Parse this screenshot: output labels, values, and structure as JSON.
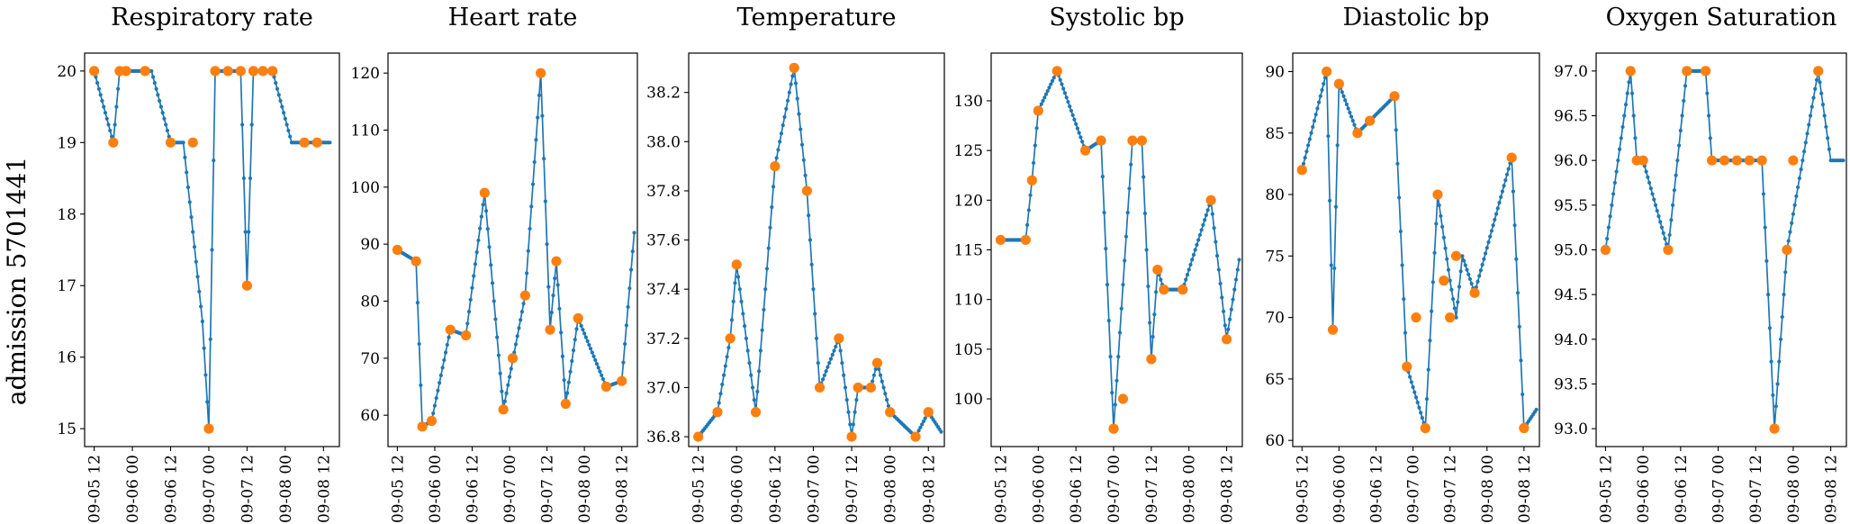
{
  "row_label": "admission 5701441",
  "colors": {
    "line": "#1f77b4",
    "marker": "#ff7f0e"
  },
  "chart_data": [
    {
      "type": "line",
      "title": "Respiratory rate",
      "x_range": [
        "09-05 09:00",
        "09-08 17:00"
      ],
      "x_ticks": [
        "09-05 12",
        "09-06 00",
        "09-06 12",
        "09-07 00",
        "09-07 12",
        "09-08 00",
        "09-08 12"
      ],
      "ylim": [
        14.75,
        20.25
      ],
      "y_ticks": [
        15,
        16,
        17,
        18,
        19,
        20
      ],
      "line_x": [
        "09-05 12:00",
        "09-05 18:00",
        "09-05 20:00",
        "09-05 22:00",
        "09-06 02:00",
        "09-06 06:00",
        "09-06 12:00",
        "09-06 16:00",
        "09-06 22:00",
        "09-07 00:00",
        "09-07 02:00",
        "09-07 06:00",
        "09-07 10:00",
        "09-07 12:00",
        "09-07 14:00",
        "09-07 18:00",
        "09-07 20:00",
        "09-08 02:00",
        "09-08 06:00",
        "09-08 10:00",
        "09-08 14:00"
      ],
      "line_y": [
        20,
        19,
        20,
        20,
        20,
        20,
        19,
        19,
        16.5,
        15,
        20,
        20,
        20,
        17,
        20,
        20,
        20,
        19,
        19,
        19,
        19
      ],
      "markers_x": [
        "09-05 12:00",
        "09-05 18:00",
        "09-05 20:00",
        "09-05 22:00",
        "09-06 04:00",
        "09-06 12:00",
        "09-06 19:00",
        "09-07 00:00",
        "09-07 02:00",
        "09-07 06:00",
        "09-07 10:00",
        "09-07 12:00",
        "09-07 14:00",
        "09-07 17:00",
        "09-07 20:00",
        "09-08 06:00",
        "09-08 10:00"
      ],
      "markers_y": [
        20,
        19,
        20,
        20,
        20,
        19,
        19,
        15,
        20,
        20,
        20,
        17,
        20,
        20,
        20,
        19,
        19
      ]
    },
    {
      "type": "line",
      "title": "Heart rate",
      "x_range": [
        "09-05 09:00",
        "09-08 17:00"
      ],
      "x_ticks": [
        "09-05 12",
        "09-06 00",
        "09-06 12",
        "09-07 00",
        "09-07 12",
        "09-08 00",
        "09-08 12"
      ],
      "ylim": [
        54.5,
        123.5
      ],
      "y_ticks": [
        60,
        70,
        80,
        90,
        100,
        110,
        120
      ],
      "line_x": [
        "09-05 12:00",
        "09-05 18:00",
        "09-05 20:00",
        "09-05 23:00",
        "09-06 05:00",
        "09-06 10:00",
        "09-06 16:00",
        "09-06 22:00",
        "09-07 05:00",
        "09-07 10:00",
        "09-07 13:00",
        "09-07 15:00",
        "09-07 18:00",
        "09-07 22:00",
        "09-08 07:00",
        "09-08 12:00",
        "09-08 16:00"
      ],
      "line_y": [
        89,
        87,
        58,
        59,
        75,
        74,
        99,
        61,
        81,
        120,
        75,
        87,
        62,
        77,
        65,
        66,
        92
      ],
      "markers_x": [
        "09-05 12:00",
        "09-05 18:00",
        "09-05 20:00",
        "09-05 23:00",
        "09-06 05:00",
        "09-06 10:00",
        "09-06 16:00",
        "09-06 22:00",
        "09-07 01:00",
        "09-07 05:00",
        "09-07 10:00",
        "09-07 13:00",
        "09-07 15:00",
        "09-07 18:00",
        "09-07 22:00",
        "09-08 07:00",
        "09-08 12:00"
      ],
      "markers_y": [
        89,
        87,
        58,
        59,
        75,
        74,
        99,
        61,
        70,
        81,
        120,
        75,
        87,
        62,
        77,
        65,
        66
      ]
    },
    {
      "type": "line",
      "title": "Temperature",
      "x_range": [
        "09-05 09:00",
        "09-08 17:00"
      ],
      "x_ticks": [
        "09-05 12",
        "09-06 00",
        "09-06 12",
        "09-07 00",
        "09-07 12",
        "09-08 00",
        "09-08 12"
      ],
      "ylim": [
        36.76,
        38.36
      ],
      "y_ticks": [
        "36.8",
        "37.0",
        "37.2",
        "37.4",
        "37.6",
        "37.8",
        "38.0",
        "38.2"
      ],
      "line_x": [
        "09-05 12:00",
        "09-05 18:00",
        "09-05 22:00",
        "09-06 00:00",
        "09-06 06:00",
        "09-06 12:00",
        "09-06 18:00",
        "09-06 22:00",
        "09-07 02:00",
        "09-07 08:00",
        "09-07 12:00",
        "09-07 14:00",
        "09-07 18:00",
        "09-07 20:00",
        "09-08 00:00",
        "09-08 08:00",
        "09-08 12:00",
        "09-08 16:00"
      ],
      "line_y": [
        36.8,
        36.9,
        37.2,
        37.5,
        36.9,
        37.9,
        38.3,
        37.8,
        37.0,
        37.2,
        36.8,
        37.0,
        37.0,
        37.1,
        36.9,
        36.8,
        36.9,
        36.82
      ],
      "markers_x": [
        "09-05 12:00",
        "09-05 18:00",
        "09-05 22:00",
        "09-06 00:00",
        "09-06 06:00",
        "09-06 12:00",
        "09-06 18:00",
        "09-06 22:00",
        "09-07 02:00",
        "09-07 08:00",
        "09-07 12:00",
        "09-07 14:00",
        "09-07 18:00",
        "09-07 20:00",
        "09-08 00:00",
        "09-08 08:00",
        "09-08 12:00"
      ],
      "markers_y": [
        36.8,
        36.9,
        37.2,
        37.5,
        36.9,
        37.9,
        38.3,
        37.8,
        37.0,
        37.2,
        36.8,
        37.0,
        37.0,
        37.1,
        36.9,
        36.8,
        36.9
      ]
    },
    {
      "type": "line",
      "title": "Systolic bp",
      "x_range": [
        "09-05 09:00",
        "09-08 17:00"
      ],
      "x_ticks": [
        "09-05 12",
        "09-06 00",
        "09-06 12",
        "09-07 00",
        "09-07 12",
        "09-08 00",
        "09-08 12"
      ],
      "ylim": [
        95.2,
        134.8
      ],
      "y_ticks": [
        100,
        105,
        110,
        115,
        120,
        125,
        130
      ],
      "line_x": [
        "09-05 12:00",
        "09-05 20:00",
        "09-05 22:00",
        "09-06 00:00",
        "09-06 06:00",
        "09-06 15:00",
        "09-06 20:00",
        "09-07 00:00",
        "09-07 06:00",
        "09-07 09:00",
        "09-07 12:00",
        "09-07 14:00",
        "09-07 16:00",
        "09-07 18:00",
        "09-07 22:00",
        "09-08 07:00",
        "09-08 12:00",
        "09-08 16:00"
      ],
      "line_y": [
        116,
        116,
        122,
        129,
        133,
        125,
        126,
        97,
        126,
        126,
        104,
        113,
        111,
        111,
        111,
        120,
        106,
        114
      ],
      "markers_x": [
        "09-05 12:00",
        "09-05 20:00",
        "09-05 22:00",
        "09-06 00:00",
        "09-06 06:00",
        "09-06 15:00",
        "09-06 20:00",
        "09-07 00:00",
        "09-07 03:00",
        "09-07 06:00",
        "09-07 09:00",
        "09-07 12:00",
        "09-07 14:00",
        "09-07 16:00",
        "09-07 22:00",
        "09-08 07:00",
        "09-08 12:00"
      ],
      "markers_y": [
        116,
        116,
        122,
        129,
        133,
        125,
        126,
        97,
        100,
        126,
        126,
        104,
        113,
        111,
        111,
        120,
        106
      ]
    },
    {
      "type": "line",
      "title": "Diastolic bp",
      "x_range": [
        "09-05 09:00",
        "09-08 17:00"
      ],
      "x_ticks": [
        "09-05 12",
        "09-06 00",
        "09-06 12",
        "09-07 00",
        "09-07 12",
        "09-08 00",
        "09-08 12"
      ],
      "ylim": [
        59.5,
        91.5
      ],
      "y_ticks": [
        60,
        65,
        70,
        75,
        80,
        85,
        90
      ],
      "line_x": [
        "09-05 12:00",
        "09-05 20:00",
        "09-05 22:00",
        "09-06 00:00",
        "09-06 06:00",
        "09-06 10:00",
        "09-06 18:00",
        "09-06 22:00",
        "09-07 04:00",
        "09-07 08:00",
        "09-07 12:00",
        "09-07 14:00",
        "09-07 16:00",
        "09-07 20:00",
        "09-08 08:00",
        "09-08 12:00",
        "09-08 16:00"
      ],
      "line_y": [
        82,
        90,
        69,
        89,
        85,
        86,
        88,
        66,
        61,
        80,
        73,
        70,
        75,
        72,
        83,
        61,
        62.5
      ],
      "markers_x": [
        "09-05 12:00",
        "09-05 20:00",
        "09-05 22:00",
        "09-06 00:00",
        "09-06 06:00",
        "09-06 10:00",
        "09-06 18:00",
        "09-06 22:00",
        "09-07 01:00",
        "09-07 04:00",
        "09-07 08:00",
        "09-07 10:00",
        "09-07 12:00",
        "09-07 14:00",
        "09-07 20:00",
        "09-08 08:00",
        "09-08 12:00"
      ],
      "markers_y": [
        82,
        90,
        69,
        89,
        85,
        86,
        88,
        66,
        70,
        61,
        80,
        73,
        70,
        75,
        72,
        83,
        61
      ]
    },
    {
      "type": "line",
      "title": "Oxygen Saturation",
      "x_range": [
        "09-05 09:00",
        "09-08 17:00"
      ],
      "x_ticks": [
        "09-05 12",
        "09-06 00",
        "09-06 12",
        "09-07 00",
        "09-07 12",
        "09-08 00",
        "09-08 12"
      ],
      "ylim": [
        92.8,
        97.2
      ],
      "y_ticks": [
        "93.0",
        "93.5",
        "94.0",
        "94.5",
        "95.0",
        "95.5",
        "96.0",
        "96.5",
        "97.0"
      ],
      "line_x": [
        "09-05 12:00",
        "09-05 20:00",
        "09-05 22:00",
        "09-06 00:00",
        "09-06 08:00",
        "09-06 14:00",
        "09-06 20:00",
        "09-06 22:00",
        "09-07 02:00",
        "09-07 06:00",
        "09-07 10:00",
        "09-07 14:00",
        "09-07 18:00",
        "09-07 22:00",
        "09-08 08:00",
        "09-08 12:00",
        "09-08 16:00"
      ],
      "line_y": [
        95,
        97,
        96,
        96,
        95,
        97,
        97,
        96,
        96,
        96,
        96,
        96,
        93,
        95,
        97,
        96,
        96
      ],
      "markers_x": [
        "09-05 12:00",
        "09-05 20:00",
        "09-05 22:00",
        "09-06 00:00",
        "09-06 08:00",
        "09-06 14:00",
        "09-06 20:00",
        "09-06 22:00",
        "09-07 02:00",
        "09-07 06:00",
        "09-07 10:00",
        "09-07 14:00",
        "09-07 18:00",
        "09-07 22:00",
        "09-08 00:00",
        "09-08 08:00"
      ],
      "markers_y": [
        95,
        97,
        96,
        96,
        95,
        97,
        97,
        96,
        96,
        96,
        96,
        96,
        93,
        95,
        96,
        97
      ]
    }
  ]
}
